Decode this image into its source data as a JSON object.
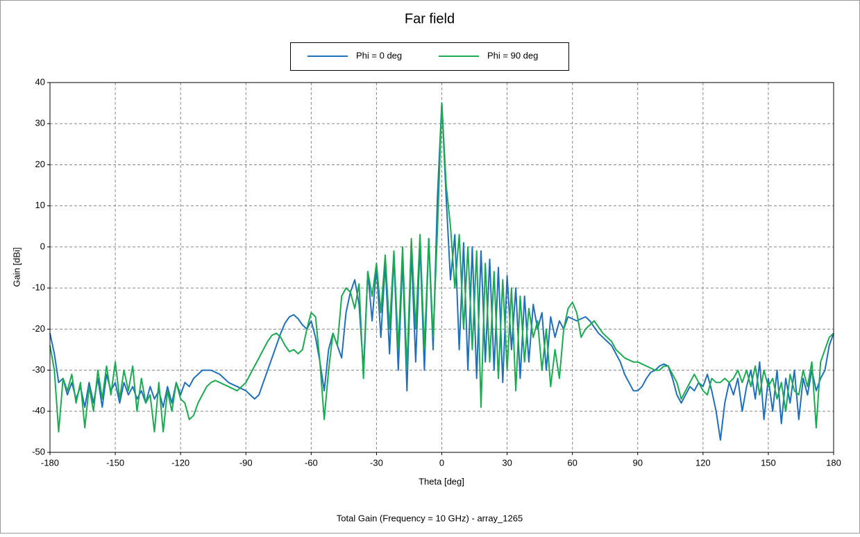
{
  "chart_data": {
    "type": "line",
    "title": "Far field",
    "xlabel": "Theta [deg]",
    "ylabel": "Gain [dBi]",
    "footer": "Total Gain (Frequency = 10 GHz) - array_1265",
    "xlim": [
      -180,
      180
    ],
    "ylim": [
      -50,
      40
    ],
    "xticks": [
      -180,
      -150,
      -120,
      -90,
      -60,
      -30,
      0,
      30,
      60,
      90,
      120,
      150,
      180
    ],
    "yticks": [
      -50,
      -40,
      -30,
      -20,
      -10,
      0,
      10,
      20,
      30,
      40
    ],
    "grid": true,
    "legend": "top",
    "x": [
      -180,
      -178,
      -176,
      -174,
      -172,
      -170,
      -168,
      -166,
      -164,
      -162,
      -160,
      -158,
      -156,
      -154,
      -152,
      -150,
      -148,
      -146,
      -144,
      -142,
      -140,
      -138,
      -136,
      -134,
      -132,
      -130,
      -128,
      -126,
      -124,
      -122,
      -120,
      -118,
      -116,
      -114,
      -112,
      -110,
      -108,
      -106,
      -104,
      -102,
      -100,
      -98,
      -96,
      -94,
      -92,
      -90,
      -88,
      -86,
      -84,
      -82,
      -80,
      -78,
      -76,
      -74,
      -72,
      -70,
      -68,
      -66,
      -64,
      -62,
      -60,
      -58,
      -56,
      -54,
      -52,
      -50,
      -48,
      -46,
      -44,
      -42,
      -40,
      -38,
      -36,
      -34,
      -32,
      -30,
      -28,
      -26,
      -24,
      -22,
      -20,
      -18,
      -16,
      -14,
      -12,
      -10,
      -8,
      -6,
      -4,
      -2,
      0,
      2,
      4,
      6,
      8,
      10,
      12,
      14,
      16,
      18,
      20,
      22,
      24,
      26,
      28,
      30,
      32,
      34,
      36,
      38,
      40,
      42,
      44,
      46,
      48,
      50,
      52,
      54,
      56,
      58,
      60,
      62,
      64,
      66,
      68,
      70,
      72,
      74,
      76,
      78,
      80,
      82,
      84,
      86,
      88,
      90,
      92,
      94,
      96,
      98,
      100,
      102,
      104,
      106,
      108,
      110,
      112,
      114,
      116,
      118,
      120,
      122,
      124,
      126,
      128,
      130,
      132,
      134,
      136,
      138,
      140,
      142,
      144,
      146,
      148,
      150,
      152,
      154,
      156,
      158,
      160,
      162,
      164,
      166,
      168,
      170,
      172,
      174,
      176,
      178,
      180
    ],
    "series": [
      {
        "name": "Phi = 0 deg",
        "color": "#1f6fbd",
        "values": [
          -21,
          -26,
          -33,
          -32,
          -36,
          -33,
          -37,
          -34,
          -39,
          -33,
          -38,
          -32,
          -39,
          -31,
          -35,
          -33,
          -38,
          -33,
          -36,
          -34,
          -37,
          -35,
          -38,
          -34,
          -37,
          -35,
          -39,
          -34,
          -38,
          -33,
          -36,
          -33,
          -34,
          -32,
          -31,
          -30,
          -30,
          -30,
          -30.5,
          -31,
          -32,
          -33,
          -33.5,
          -34,
          -34.5,
          -35,
          -36,
          -37,
          -36,
          -33,
          -30,
          -27,
          -24,
          -21,
          -18.5,
          -17,
          -16.5,
          -17.5,
          -19,
          -20,
          -18,
          -22,
          -28,
          -35,
          -25,
          -21,
          -24,
          -27,
          -16,
          -11,
          -8,
          -14,
          -30,
          -6,
          -18,
          -5,
          -22,
          -4,
          -26,
          -2,
          -30,
          -3,
          -35,
          -1,
          -28,
          1,
          -30,
          2,
          -25,
          12,
          35,
          12,
          -8,
          3,
          -25,
          1,
          -30,
          0,
          -32,
          -1,
          -28,
          -3,
          -30,
          -5,
          -33,
          -7,
          -25,
          -10,
          -32,
          -12,
          -28,
          -14,
          -20,
          -16,
          -30,
          -17,
          -22,
          -18,
          -20,
          -17,
          -17.5,
          -18,
          -17.5,
          -17,
          -18,
          -19.5,
          -21,
          -22,
          -23,
          -24,
          -26,
          -28,
          -31,
          -33,
          -35,
          -35,
          -34,
          -32,
          -30.5,
          -30,
          -29,
          -28.5,
          -29,
          -32,
          -36,
          -38,
          -36,
          -34,
          -35,
          -33,
          -34,
          -31,
          -35,
          -40,
          -47,
          -38,
          -33,
          -36,
          -32,
          -40,
          -34,
          -30,
          -37,
          -28,
          -42,
          -32,
          -40,
          -30,
          -43,
          -32,
          -38,
          -30,
          -42,
          -32,
          -36,
          -30,
          -35,
          -32,
          -30,
          -24,
          -21
        ]
      },
      {
        "name": "Phi = 90 deg",
        "color": "#1aaa4f",
        "values": [
          -24,
          -30,
          -45,
          -32,
          -35,
          -31,
          -38,
          -33,
          -44,
          -34,
          -40,
          -30,
          -37,
          -29,
          -36,
          -28,
          -37,
          -30,
          -35,
          -29,
          -40,
          -32,
          -38,
          -36,
          -45,
          -33,
          -45,
          -35,
          -40,
          -33,
          -37,
          -38,
          -42,
          -41,
          -38,
          -36,
          -34,
          -33,
          -32.5,
          -33,
          -33.5,
          -34,
          -34.5,
          -35,
          -34,
          -33,
          -31,
          -29,
          -27,
          -25,
          -23,
          -21.5,
          -21,
          -22,
          -24,
          -25.5,
          -25,
          -26,
          -25,
          -20,
          -16,
          -17,
          -28,
          -42,
          -30,
          -21,
          -24,
          -12,
          -10,
          -11,
          -15,
          -9,
          -32,
          -6,
          -12,
          -4,
          -16,
          -2,
          -20,
          -1,
          -25,
          0,
          -30,
          2,
          -20,
          3,
          -25,
          2,
          -22,
          4,
          35,
          15,
          5,
          -10,
          3,
          -20,
          0,
          -25,
          -1,
          -39,
          -4,
          -28,
          -6,
          -32,
          -8,
          -30,
          -10,
          -35,
          -12,
          -28,
          -15,
          -22,
          -18,
          -30,
          -20,
          -34,
          -25,
          -32,
          -20,
          -15,
          -13.5,
          -16,
          -22,
          -20,
          -19,
          -18,
          -19.5,
          -21,
          -22,
          -23,
          -25,
          -26,
          -27,
          -27.5,
          -28,
          -28,
          -28.5,
          -29,
          -29.5,
          -30,
          -30,
          -29,
          -29,
          -31,
          -33,
          -37,
          -35,
          -33,
          -31,
          -33,
          -35,
          -36,
          -32,
          -33,
          -33,
          -32,
          -33,
          -32,
          -30,
          -33,
          -30,
          -34,
          -29,
          -36,
          -30,
          -34,
          -32,
          -37,
          -33,
          -40,
          -31,
          -35,
          -36,
          -30,
          -34,
          -28,
          -44,
          -28,
          -25,
          -22,
          -21
        ]
      }
    ]
  }
}
